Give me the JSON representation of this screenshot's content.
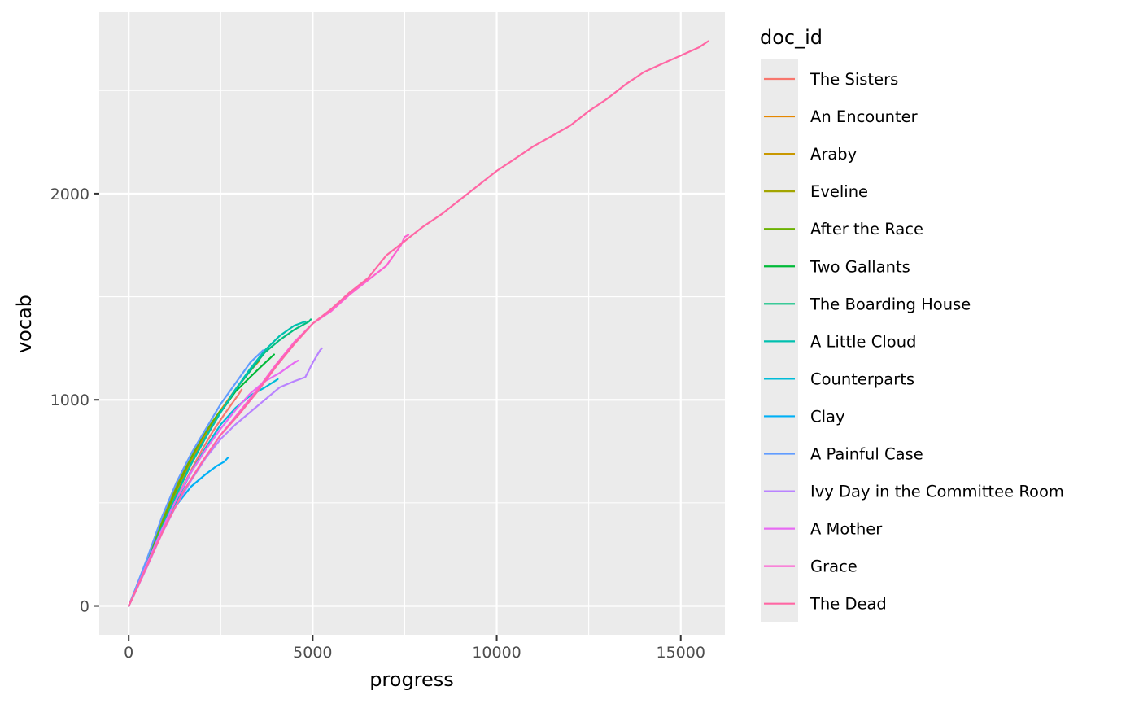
{
  "chart_data": {
    "type": "line",
    "xlabel": "progress",
    "ylabel": "vocab",
    "xlim": [
      -800,
      16200
    ],
    "ylim": [
      -140,
      2880
    ],
    "x_ticks": [
      0,
      5000,
      10000,
      15000
    ],
    "x_tick_labels": [
      "0",
      "5000",
      "10000",
      "15000"
    ],
    "y_ticks": [
      0,
      1000,
      2000
    ],
    "y_tick_labels": [
      "0",
      "1000",
      "2000"
    ],
    "grid": true,
    "legend": {
      "title": "doc_id",
      "placement": "right"
    },
    "series": [
      {
        "name": "The Sisters",
        "color": "#F8766D",
        "points": [
          [
            0,
            0
          ],
          [
            200,
            80
          ],
          [
            500,
            200
          ],
          [
            900,
            370
          ],
          [
            1300,
            520
          ],
          [
            1700,
            660
          ],
          [
            2000,
            760
          ],
          [
            2300,
            850
          ],
          [
            2600,
            930
          ],
          [
            3000,
            1030
          ],
          [
            3070,
            1050
          ]
        ]
      },
      {
        "name": "An Encounter",
        "color": "#E58700",
        "points": [
          [
            0,
            0
          ],
          [
            200,
            85
          ],
          [
            500,
            210
          ],
          [
            900,
            390
          ],
          [
            1300,
            550
          ],
          [
            1700,
            700
          ],
          [
            2100,
            830
          ],
          [
            2500,
            950
          ],
          [
            2900,
            1050
          ],
          [
            3300,
            1140
          ],
          [
            3550,
            1190
          ]
        ]
      },
      {
        "name": "Araby",
        "color": "#C99800",
        "points": [
          [
            0,
            0
          ],
          [
            200,
            85
          ],
          [
            500,
            215
          ],
          [
            900,
            400
          ],
          [
            1300,
            560
          ],
          [
            1700,
            710
          ],
          [
            2000,
            810
          ],
          [
            2250,
            880
          ]
        ]
      },
      {
        "name": "Eveline",
        "color": "#A3A500",
        "points": [
          [
            0,
            0
          ],
          [
            200,
            85
          ],
          [
            500,
            215
          ],
          [
            800,
            360
          ],
          [
            1100,
            500
          ],
          [
            1400,
            620
          ],
          [
            1700,
            720
          ],
          [
            1820,
            760
          ]
        ]
      },
      {
        "name": "After the Race",
        "color": "#6BB100",
        "points": [
          [
            0,
            0
          ],
          [
            200,
            85
          ],
          [
            500,
            215
          ],
          [
            900,
            400
          ],
          [
            1300,
            570
          ],
          [
            1700,
            720
          ],
          [
            2000,
            820
          ],
          [
            2300,
            900
          ],
          [
            2500,
            950
          ]
        ]
      },
      {
        "name": "Two Gallants",
        "color": "#00BA38",
        "points": [
          [
            0,
            0
          ],
          [
            200,
            80
          ],
          [
            500,
            205
          ],
          [
            900,
            380
          ],
          [
            1300,
            540
          ],
          [
            1700,
            690
          ],
          [
            2100,
            820
          ],
          [
            2500,
            940
          ],
          [
            2900,
            1040
          ],
          [
            3300,
            1110
          ],
          [
            3650,
            1170
          ],
          [
            3950,
            1220
          ]
        ]
      },
      {
        "name": "The Boarding House",
        "color": "#00BF7D",
        "points": [
          [
            0,
            0
          ],
          [
            200,
            80
          ],
          [
            500,
            205
          ],
          [
            900,
            380
          ],
          [
            1300,
            540
          ],
          [
            1700,
            690
          ],
          [
            2100,
            820
          ],
          [
            2500,
            940
          ],
          [
            2900,
            1050
          ],
          [
            3300,
            1140
          ],
          [
            3700,
            1230
          ],
          [
            4100,
            1290
          ],
          [
            4500,
            1340
          ],
          [
            4900,
            1380
          ],
          [
            4950,
            1390
          ]
        ]
      },
      {
        "name": "A Little Cloud",
        "color": "#00C0AF",
        "points": [
          [
            0,
            0
          ],
          [
            200,
            80
          ],
          [
            500,
            205
          ],
          [
            900,
            380
          ],
          [
            1300,
            540
          ],
          [
            1700,
            690
          ],
          [
            2100,
            820
          ],
          [
            2500,
            940
          ],
          [
            2900,
            1050
          ],
          [
            3300,
            1150
          ],
          [
            3700,
            1240
          ],
          [
            4100,
            1310
          ],
          [
            4500,
            1360
          ],
          [
            4800,
            1380
          ]
        ]
      },
      {
        "name": "Counterparts",
        "color": "#00BCD8",
        "points": [
          [
            0,
            0
          ],
          [
            200,
            75
          ],
          [
            500,
            195
          ],
          [
            900,
            360
          ],
          [
            1300,
            510
          ],
          [
            1700,
            650
          ],
          [
            2100,
            770
          ],
          [
            2500,
            880
          ],
          [
            2900,
            960
          ],
          [
            3300,
            1020
          ],
          [
            3700,
            1060
          ],
          [
            4050,
            1100
          ]
        ]
      },
      {
        "name": "Clay",
        "color": "#00B0F6",
        "points": [
          [
            0,
            0
          ],
          [
            200,
            80
          ],
          [
            500,
            200
          ],
          [
            900,
            360
          ],
          [
            1300,
            490
          ],
          [
            1700,
            580
          ],
          [
            2100,
            640
          ],
          [
            2400,
            680
          ],
          [
            2600,
            700
          ],
          [
            2700,
            720
          ]
        ]
      },
      {
        "name": "A Painful Case",
        "color": "#619CFF",
        "points": [
          [
            0,
            0
          ],
          [
            200,
            90
          ],
          [
            500,
            230
          ],
          [
            900,
            430
          ],
          [
            1300,
            600
          ],
          [
            1700,
            740
          ],
          [
            2100,
            860
          ],
          [
            2500,
            980
          ],
          [
            2900,
            1080
          ],
          [
            3300,
            1180
          ],
          [
            3650,
            1240
          ]
        ]
      },
      {
        "name": "Ivy Day in the Committee Room",
        "color": "#B983FF",
        "points": [
          [
            0,
            0
          ],
          [
            200,
            75
          ],
          [
            500,
            190
          ],
          [
            900,
            350
          ],
          [
            1300,
            490
          ],
          [
            1700,
            610
          ],
          [
            2100,
            720
          ],
          [
            2500,
            810
          ],
          [
            2900,
            880
          ],
          [
            3300,
            940
          ],
          [
            3700,
            1000
          ],
          [
            4100,
            1060
          ],
          [
            4500,
            1090
          ],
          [
            4800,
            1110
          ],
          [
            5000,
            1180
          ],
          [
            5200,
            1240
          ],
          [
            5250,
            1250
          ]
        ]
      },
      {
        "name": "A Mother",
        "color": "#E76BF3",
        "points": [
          [
            0,
            0
          ],
          [
            200,
            80
          ],
          [
            500,
            205
          ],
          [
            900,
            370
          ],
          [
            1300,
            520
          ],
          [
            1700,
            650
          ],
          [
            2100,
            760
          ],
          [
            2500,
            860
          ],
          [
            2900,
            950
          ],
          [
            3300,
            1030
          ],
          [
            3700,
            1090
          ],
          [
            4100,
            1130
          ],
          [
            4500,
            1180
          ],
          [
            4600,
            1190
          ]
        ]
      },
      {
        "name": "Grace",
        "color": "#FD61D1",
        "points": [
          [
            0,
            0
          ],
          [
            200,
            75
          ],
          [
            500,
            195
          ],
          [
            1000,
            390
          ],
          [
            1500,
            560
          ],
          [
            2000,
            700
          ],
          [
            2500,
            830
          ],
          [
            3000,
            940
          ],
          [
            3500,
            1050
          ],
          [
            4000,
            1170
          ],
          [
            4500,
            1280
          ],
          [
            5000,
            1370
          ],
          [
            5500,
            1430
          ],
          [
            6000,
            1510
          ],
          [
            6500,
            1580
          ],
          [
            7000,
            1650
          ],
          [
            7400,
            1750
          ],
          [
            7500,
            1790
          ],
          [
            7600,
            1800
          ]
        ]
      },
      {
        "name": "The Dead",
        "color": "#FF67A4",
        "points": [
          [
            0,
            0
          ],
          [
            500,
            195
          ],
          [
            1000,
            390
          ],
          [
            1500,
            560
          ],
          [
            2000,
            700
          ],
          [
            2500,
            830
          ],
          [
            3000,
            930
          ],
          [
            3500,
            1040
          ],
          [
            4000,
            1160
          ],
          [
            4500,
            1270
          ],
          [
            5000,
            1370
          ],
          [
            5500,
            1440
          ],
          [
            6000,
            1520
          ],
          [
            6500,
            1590
          ],
          [
            7000,
            1700
          ],
          [
            7500,
            1770
          ],
          [
            8000,
            1840
          ],
          [
            8500,
            1900
          ],
          [
            9000,
            1970
          ],
          [
            9500,
            2040
          ],
          [
            10000,
            2110
          ],
          [
            10500,
            2170
          ],
          [
            11000,
            2230
          ],
          [
            11500,
            2280
          ],
          [
            12000,
            2330
          ],
          [
            12500,
            2400
          ],
          [
            13000,
            2460
          ],
          [
            13500,
            2530
          ],
          [
            14000,
            2590
          ],
          [
            14500,
            2630
          ],
          [
            15000,
            2670
          ],
          [
            15500,
            2710
          ],
          [
            15750,
            2740
          ]
        ]
      }
    ]
  }
}
